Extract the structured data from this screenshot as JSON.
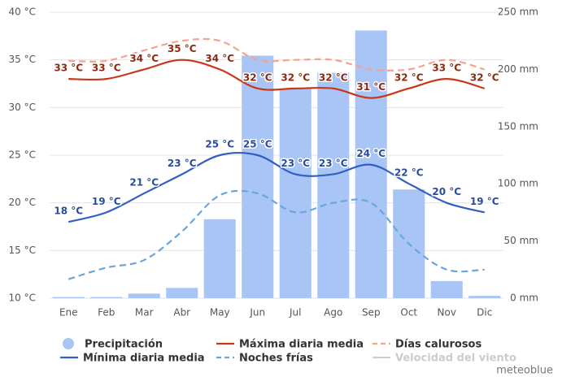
{
  "chart_data": {
    "type": "combo",
    "categories": [
      "Ene",
      "Feb",
      "Mar",
      "Abr",
      "May",
      "Jun",
      "Jul",
      "Ago",
      "Sep",
      "Oct",
      "Nov",
      "Dic"
    ],
    "ylim": [
      10,
      40
    ],
    "yticks": [
      {
        "value": 10,
        "label": "10 °C"
      },
      {
        "value": 15,
        "label": "15 °C"
      },
      {
        "value": 20,
        "label": "20 °C"
      },
      {
        "value": 25,
        "label": "25 °C"
      },
      {
        "value": 30,
        "label": "30 °C"
      },
      {
        "value": 35,
        "label": "35 °C"
      },
      {
        "value": 40,
        "label": "40 °C"
      }
    ],
    "y2lim": [
      0,
      250
    ],
    "y2ticks": [
      {
        "value": 0,
        "label": "0 mm"
      },
      {
        "value": 50,
        "label": "50 mm"
      },
      {
        "value": 100,
        "label": "100 mm"
      },
      {
        "value": 150,
        "label": "150 mm"
      },
      {
        "value": 200,
        "label": "200 mm"
      },
      {
        "value": 250,
        "label": "250 mm"
      }
    ],
    "grid": true,
    "series": [
      {
        "name": "Precipitación",
        "type": "bar",
        "axis": "y2",
        "color": "#a9c5f6",
        "values": [
          1,
          1,
          4,
          9,
          69,
          212,
          183,
          197,
          234,
          95,
          15,
          2
        ]
      },
      {
        "name": "Máxima diaria media",
        "type": "line",
        "color": "#c9361a",
        "dashed": false,
        "values": [
          33,
          33,
          34,
          35,
          34,
          32,
          32,
          32,
          31,
          32,
          33,
          32
        ],
        "value_labels": [
          "33 °C",
          "33 °C",
          "34 °C",
          "35 °C",
          "34 °C",
          "32 °C",
          "32 °C",
          "32 °C",
          "31 °C",
          "32 °C",
          "33 °C",
          "32 °C"
        ],
        "label_color": "#8a2a10"
      },
      {
        "name": "Días calurosos",
        "type": "line",
        "color": "#f5a38e",
        "dashed": true,
        "values": [
          34.9,
          34.9,
          36,
          37,
          37,
          35,
          35,
          35,
          34,
          34,
          35,
          34
        ]
      },
      {
        "name": "Mínima diaria media",
        "type": "line",
        "color": "#2f5fc0",
        "dashed": false,
        "values": [
          18,
          19,
          21,
          23,
          25,
          25,
          23,
          23,
          24,
          22,
          20,
          19
        ],
        "value_labels": [
          "18 °C",
          "19 °C",
          "21 °C",
          "23 °C",
          "25 °C",
          "25 °C",
          "23 °C",
          "23 °C",
          "24 °C",
          "22 °C",
          "20 °C",
          "19 °C"
        ],
        "label_color": "#2a4d9a"
      },
      {
        "name": "Noches frías",
        "type": "line",
        "color": "#6aa6dc",
        "dashed": true,
        "values": [
          12,
          13.2,
          14,
          17,
          20.8,
          21,
          19,
          20,
          20,
          15.7,
          13,
          13
        ]
      }
    ],
    "inactive_legend": {
      "name": "Velocidad del viento",
      "color": "#cccccc"
    },
    "credit": "meteoblue"
  }
}
